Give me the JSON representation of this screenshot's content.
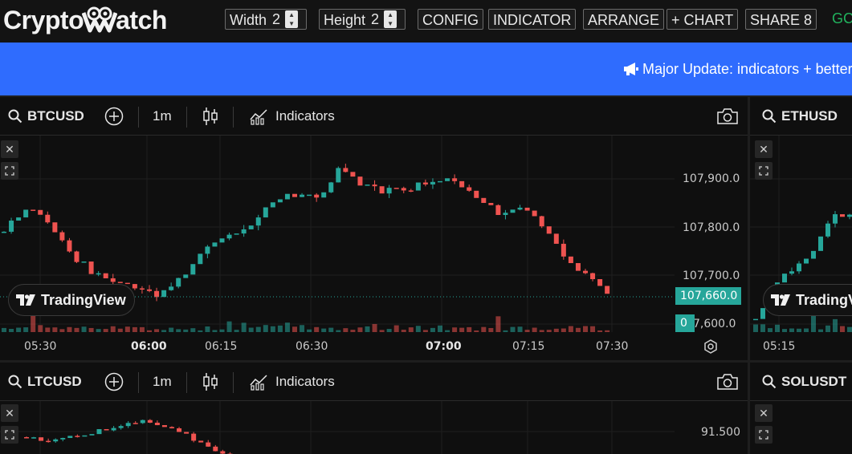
{
  "header": {
    "logo_text_left": "Crypto",
    "logo_text_right": "atch",
    "width_label": "Width",
    "width_value": "2",
    "height_label": "Height",
    "height_value": "2",
    "config_label": "CONFIG",
    "indicator_label": "INDICATOR",
    "arrange_label": "ARRANGE",
    "add_chart_label": "+ CHART",
    "share_label": "SHARE 8",
    "status_text": "GC"
  },
  "announcement": {
    "text": "Major Update: indicators + better"
  },
  "panels": [
    {
      "symbol": "BTCUSD",
      "interval": "1m",
      "indicators_label": "Indicators",
      "price_labels": [
        "107,900.0",
        "107,800.0",
        "107,700.0",
        "7,600.0"
      ],
      "current_price": "107,660.0",
      "volume_badge": "0",
      "time_labels": [
        "05:30",
        "06:00",
        "06:15",
        "06:30",
        "07:00",
        "07:15",
        "07:30"
      ],
      "watermark": "TradingView"
    },
    {
      "symbol": "ETHUSD",
      "time_labels": [
        "05:15"
      ],
      "watermark": "TradingV"
    },
    {
      "symbol": "LTCUSD",
      "interval": "1m",
      "indicators_label": "Indicators",
      "price_labels": [
        "91.500"
      ]
    },
    {
      "symbol": "SOLUSDT"
    }
  ],
  "colors": {
    "up": "#26a69a",
    "down": "#ef5350",
    "accent": "#2f6cfe"
  }
}
